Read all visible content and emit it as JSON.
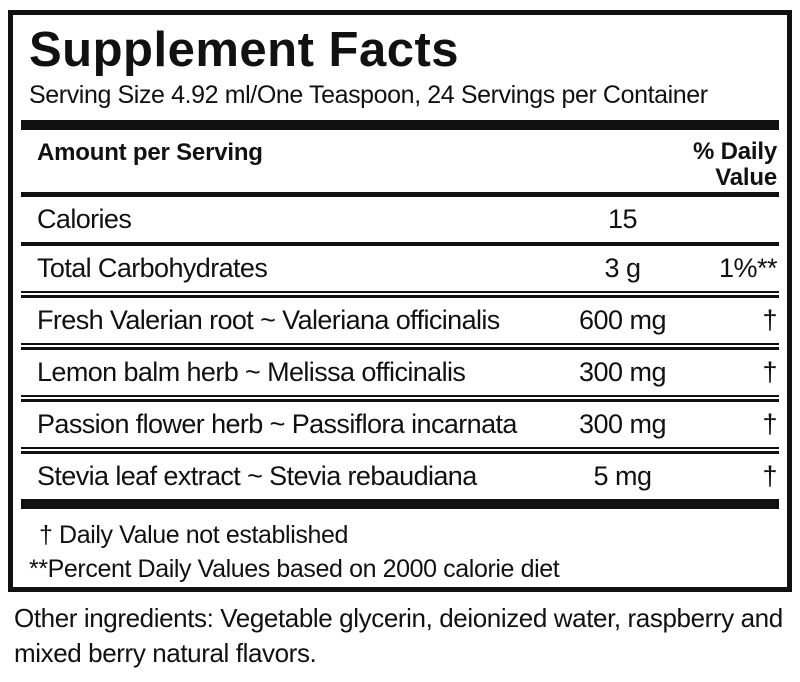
{
  "label": {
    "title": "Supplement Facts",
    "serving_line": "Serving Size 4.92 ml/One Teaspoon, 24 Servings per Container",
    "header": {
      "amount_col": "Amount per Serving",
      "dv_col_line1": "% Daily",
      "dv_col_line2": "Value"
    },
    "rows": [
      {
        "name": "Calories",
        "amount": "15",
        "dv": ""
      },
      {
        "name": "Total Carbohydrates",
        "amount": "3 g",
        "dv": "1%**"
      },
      {
        "name": "Fresh Valerian root  ~ Valeriana officinalis",
        "amount": "600 mg",
        "dv": "†"
      },
      {
        "name": "Lemon balm herb ~ Melissa officinalis",
        "amount": "300 mg",
        "dv": "†"
      },
      {
        "name": "Passion flower herb ~ Passiflora incarnata",
        "amount": "300 mg",
        "dv": "†"
      },
      {
        "name": "Stevia leaf extract ~ Stevia rebaudiana",
        "amount": "5 mg",
        "dv": "†"
      }
    ],
    "footnotes": {
      "dagger": "†  Daily Value not established",
      "percent": "**Percent Daily Values based on 2000 calorie diet"
    },
    "other_ingredients": "Other ingredients: Vegetable glycerin, deionized water, raspberry and mixed berry natural flavors.",
    "colors": {
      "text": "#111111",
      "background": "#ffffff",
      "rule": "#111111"
    }
  }
}
